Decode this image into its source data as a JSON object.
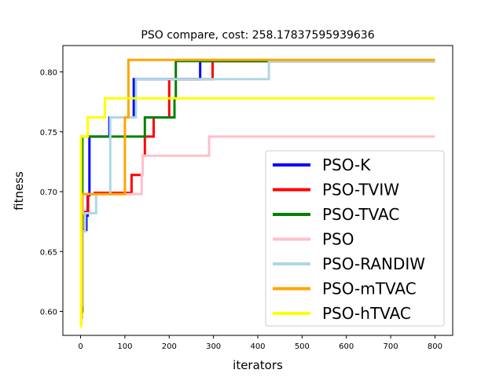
{
  "chart_data": {
    "type": "line",
    "title": "PSO compare, cost: 258.17837595939636",
    "xlabel": "iterators",
    "ylabel": "fitness",
    "xlim": [
      -40,
      840
    ],
    "ylim": [
      0.58,
      0.822
    ],
    "xticks": [
      0,
      100,
      200,
      300,
      400,
      500,
      600,
      700,
      800
    ],
    "yticks": [
      0.6,
      0.65,
      0.7,
      0.75,
      0.8
    ],
    "xtick_labels": [
      "0",
      "100",
      "200",
      "300",
      "400",
      "500",
      "600",
      "700",
      "800"
    ],
    "ytick_labels": [
      "0.60",
      "0.65",
      "0.70",
      "0.75",
      "0.80"
    ],
    "legend_position": "lower-right",
    "grid": false,
    "series": [
      {
        "name": "PSO-K",
        "color": "#0000ff",
        "points": [
          [
            0,
            0.61
          ],
          [
            2,
            0.61
          ],
          [
            2,
            0.668
          ],
          [
            13,
            0.668
          ],
          [
            13,
            0.68
          ],
          [
            16,
            0.68
          ],
          [
            16,
            0.697
          ],
          [
            20,
            0.697
          ],
          [
            20,
            0.746
          ],
          [
            65,
            0.746
          ],
          [
            65,
            0.762
          ],
          [
            120,
            0.762
          ],
          [
            120,
            0.794
          ],
          [
            270,
            0.794
          ],
          [
            270,
            0.809
          ],
          [
            800,
            0.809
          ]
        ]
      },
      {
        "name": "PSO-TVIW",
        "color": "#ff0000",
        "points": [
          [
            0,
            0.6
          ],
          [
            2,
            0.6
          ],
          [
            2,
            0.667
          ],
          [
            10,
            0.667
          ],
          [
            10,
            0.683
          ],
          [
            17,
            0.683
          ],
          [
            17,
            0.698
          ],
          [
            32,
            0.698
          ],
          [
            32,
            0.699
          ],
          [
            115,
            0.699
          ],
          [
            115,
            0.714
          ],
          [
            140,
            0.714
          ],
          [
            140,
            0.73
          ],
          [
            145,
            0.73
          ],
          [
            145,
            0.746
          ],
          [
            165,
            0.746
          ],
          [
            165,
            0.762
          ],
          [
            200,
            0.762
          ],
          [
            200,
            0.794
          ],
          [
            298,
            0.794
          ],
          [
            298,
            0.809
          ],
          [
            800,
            0.809
          ]
        ]
      },
      {
        "name": "PSO-TVAC",
        "color": "#008000",
        "points": [
          [
            0,
            0.6
          ],
          [
            4,
            0.6
          ],
          [
            4,
            0.746
          ],
          [
            145,
            0.746
          ],
          [
            145,
            0.762
          ],
          [
            212,
            0.762
          ],
          [
            212,
            0.778
          ],
          [
            215,
            0.778
          ],
          [
            215,
            0.809
          ],
          [
            800,
            0.809
          ]
        ]
      },
      {
        "name": "PSO",
        "color": "#ffc0cb",
        "points": [
          [
            0,
            0.59
          ],
          [
            2,
            0.59
          ],
          [
            2,
            0.682
          ],
          [
            5,
            0.682
          ],
          [
            5,
            0.698
          ],
          [
            138,
            0.698
          ],
          [
            138,
            0.714
          ],
          [
            140,
            0.714
          ],
          [
            140,
            0.73
          ],
          [
            290,
            0.73
          ],
          [
            290,
            0.746
          ],
          [
            800,
            0.746
          ]
        ]
      },
      {
        "name": "PSO-RANDIW",
        "color": "#add8e6",
        "points": [
          [
            0,
            0.605
          ],
          [
            5,
            0.605
          ],
          [
            5,
            0.667
          ],
          [
            10,
            0.667
          ],
          [
            10,
            0.682
          ],
          [
            35,
            0.682
          ],
          [
            35,
            0.698
          ],
          [
            67,
            0.698
          ],
          [
            67,
            0.762
          ],
          [
            125,
            0.762
          ],
          [
            125,
            0.794
          ],
          [
            425,
            0.794
          ],
          [
            425,
            0.809
          ],
          [
            800,
            0.809
          ]
        ]
      },
      {
        "name": "PSO-mTVAC",
        "color": "#ffa500",
        "points": [
          [
            0,
            0.595
          ],
          [
            3,
            0.595
          ],
          [
            3,
            0.698
          ],
          [
            100,
            0.698
          ],
          [
            100,
            0.762
          ],
          [
            108,
            0.762
          ],
          [
            108,
            0.81
          ],
          [
            800,
            0.81
          ]
        ]
      },
      {
        "name": "PSO-hTVAC",
        "color": "#ffff00",
        "points": [
          [
            0,
            0.587
          ],
          [
            1,
            0.587
          ],
          [
            1,
            0.746
          ],
          [
            16,
            0.746
          ],
          [
            16,
            0.762
          ],
          [
            55,
            0.762
          ],
          [
            55,
            0.778
          ],
          [
            800,
            0.778
          ]
        ]
      }
    ]
  }
}
